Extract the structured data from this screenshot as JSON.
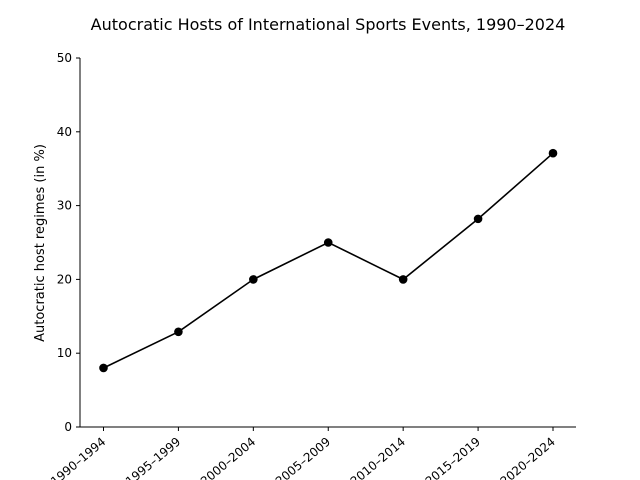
{
  "chart_data": {
    "type": "line",
    "title": "Autocratic Hosts of International Sports Events, 1990–2024",
    "xlabel": "",
    "ylabel": "Autocratic host regimes (in %)",
    "categories": [
      "1990–1994",
      "1995–1999",
      "2000–2004",
      "2005–2009",
      "2010–2014",
      "2015–2019",
      "2020–2024"
    ],
    "tick_labels": [
      "1990–1994",
      "1995–1999",
      "2000–2004",
      "2005–2009",
      "2010–2014",
      "2015–2019",
      "2020–2024"
    ],
    "series": [
      {
        "values": [
          8,
          12.9,
          20,
          25,
          20,
          28.2,
          37.1
        ],
        "color": "#000000"
      }
    ],
    "ylim": [
      0,
      50
    ],
    "yticks": [
      0,
      10,
      20,
      30,
      40,
      50
    ],
    "grid": false,
    "spines": "left-bottom"
  }
}
